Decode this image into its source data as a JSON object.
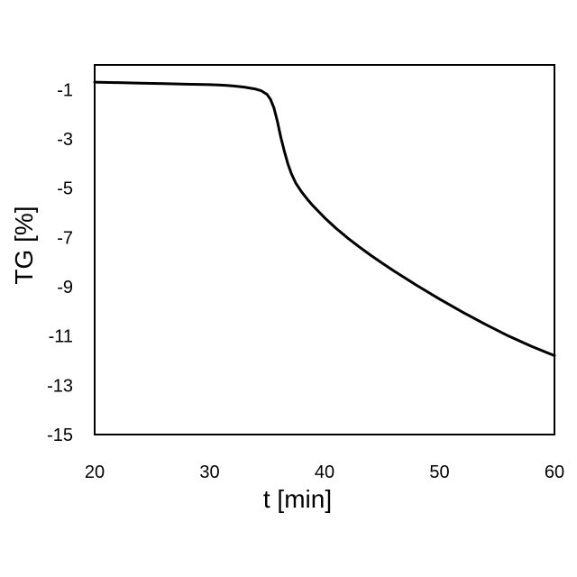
{
  "chart_data": {
    "type": "line",
    "title": "",
    "xlabel": "t [min]",
    "ylabel": "TG [%]",
    "xlim": [
      20,
      60
    ],
    "ylim": [
      -15,
      0
    ],
    "xticks": [
      20,
      30,
      40,
      50,
      60
    ],
    "yticks": [
      -1,
      -3,
      -5,
      -7,
      -9,
      -11,
      -13,
      -15
    ],
    "xtick_labels": [
      "20",
      "30",
      "40",
      "50",
      "60"
    ],
    "ytick_labels": [
      "-1",
      "-3",
      "-5",
      "-7",
      "-9",
      "-11",
      "-13",
      "-15"
    ],
    "grid": false,
    "legend": "none",
    "line_color": "#000000",
    "series": [
      {
        "x": [
          20,
          22,
          24,
          26,
          28,
          30,
          31,
          32,
          33,
          34,
          34.5,
          35,
          35.3,
          35.6,
          35.9,
          36.2,
          36.5,
          36.8,
          37.1,
          37.5,
          38,
          38.5,
          39,
          40,
          41,
          42,
          43,
          44,
          45,
          46,
          48,
          50,
          52,
          54,
          56,
          58,
          60
        ],
        "y": [
          -0.7,
          -0.72,
          -0.74,
          -0.76,
          -0.78,
          -0.8,
          -0.82,
          -0.85,
          -0.9,
          -0.98,
          -1.05,
          -1.2,
          -1.4,
          -1.75,
          -2.3,
          -2.95,
          -3.5,
          -4.0,
          -4.4,
          -4.8,
          -5.15,
          -5.45,
          -5.72,
          -6.2,
          -6.63,
          -7.02,
          -7.38,
          -7.72,
          -8.04,
          -8.35,
          -8.94,
          -9.5,
          -10.03,
          -10.53,
          -11.0,
          -11.42,
          -11.8
        ]
      }
    ]
  }
}
